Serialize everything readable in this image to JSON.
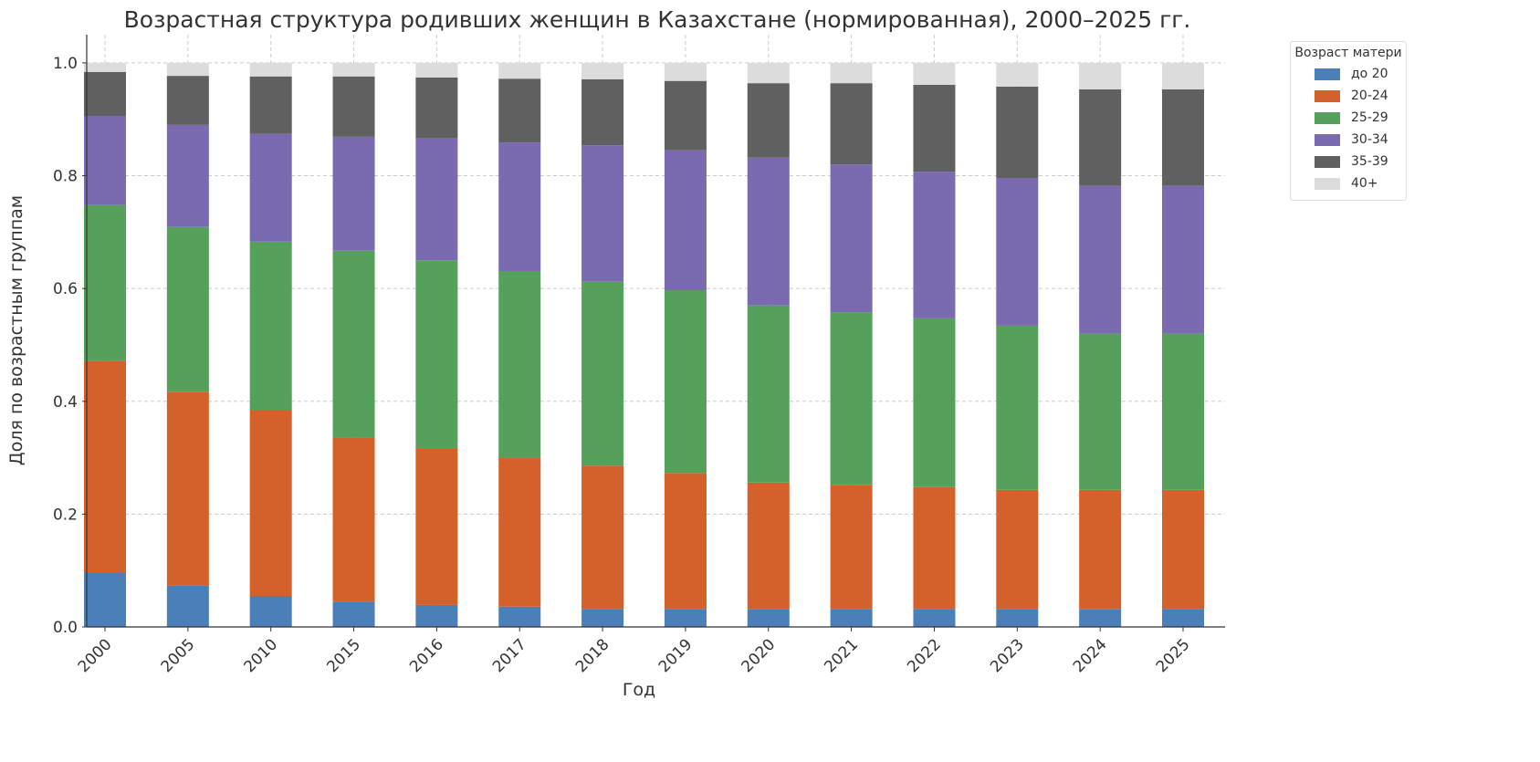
{
  "chart_data": {
    "type": "bar",
    "stacked": true,
    "title": "Возрастная структура родивших женщин в Казахстане (нормированная), 2000–2025 гг.",
    "xlabel": "Год",
    "ylabel": "Доля по возрастным группам",
    "ylim": [
      0,
      1.05
    ],
    "yticks": [
      "0.0",
      "0.2",
      "0.4",
      "0.6",
      "0.8",
      "1.0"
    ],
    "grid": true,
    "legend": {
      "title": "Возраст матери",
      "placement": "outside-top-right"
    },
    "categories": [
      "2000",
      "2005",
      "2010",
      "2015",
      "2016",
      "2017",
      "2018",
      "2019",
      "2020",
      "2021",
      "2022",
      "2023",
      "2024",
      "2025"
    ],
    "series": [
      {
        "name": "до 20",
        "color": "#4a7fb8",
        "values": [
          0.097,
          0.073,
          0.055,
          0.045,
          0.039,
          0.036,
          0.032,
          0.032,
          0.032,
          0.032,
          0.032,
          0.032,
          0.031,
          0.032
        ]
      },
      {
        "name": "20-24",
        "color": "#d4602a",
        "values": [
          0.374,
          0.344,
          0.33,
          0.29,
          0.278,
          0.264,
          0.254,
          0.241,
          0.224,
          0.22,
          0.216,
          0.211,
          0.212,
          0.211
        ]
      },
      {
        "name": "25-29",
        "color": "#55a05a",
        "values": [
          0.277,
          0.292,
          0.298,
          0.332,
          0.333,
          0.331,
          0.326,
          0.324,
          0.314,
          0.306,
          0.299,
          0.291,
          0.277,
          0.277
        ]
      },
      {
        "name": "30-34",
        "color": "#7a6bb0",
        "values": [
          0.158,
          0.181,
          0.191,
          0.202,
          0.216,
          0.228,
          0.242,
          0.248,
          0.262,
          0.262,
          0.26,
          0.262,
          0.262,
          0.262
        ]
      },
      {
        "name": "35-39",
        "color": "#606060",
        "values": [
          0.078,
          0.087,
          0.102,
          0.107,
          0.108,
          0.113,
          0.117,
          0.123,
          0.132,
          0.144,
          0.154,
          0.162,
          0.171,
          0.171
        ]
      },
      {
        "name": "40+",
        "color": "#dcdcdc",
        "values": [
          0.016,
          0.023,
          0.024,
          0.024,
          0.026,
          0.028,
          0.029,
          0.032,
          0.036,
          0.036,
          0.039,
          0.042,
          0.047,
          0.047
        ]
      }
    ]
  }
}
